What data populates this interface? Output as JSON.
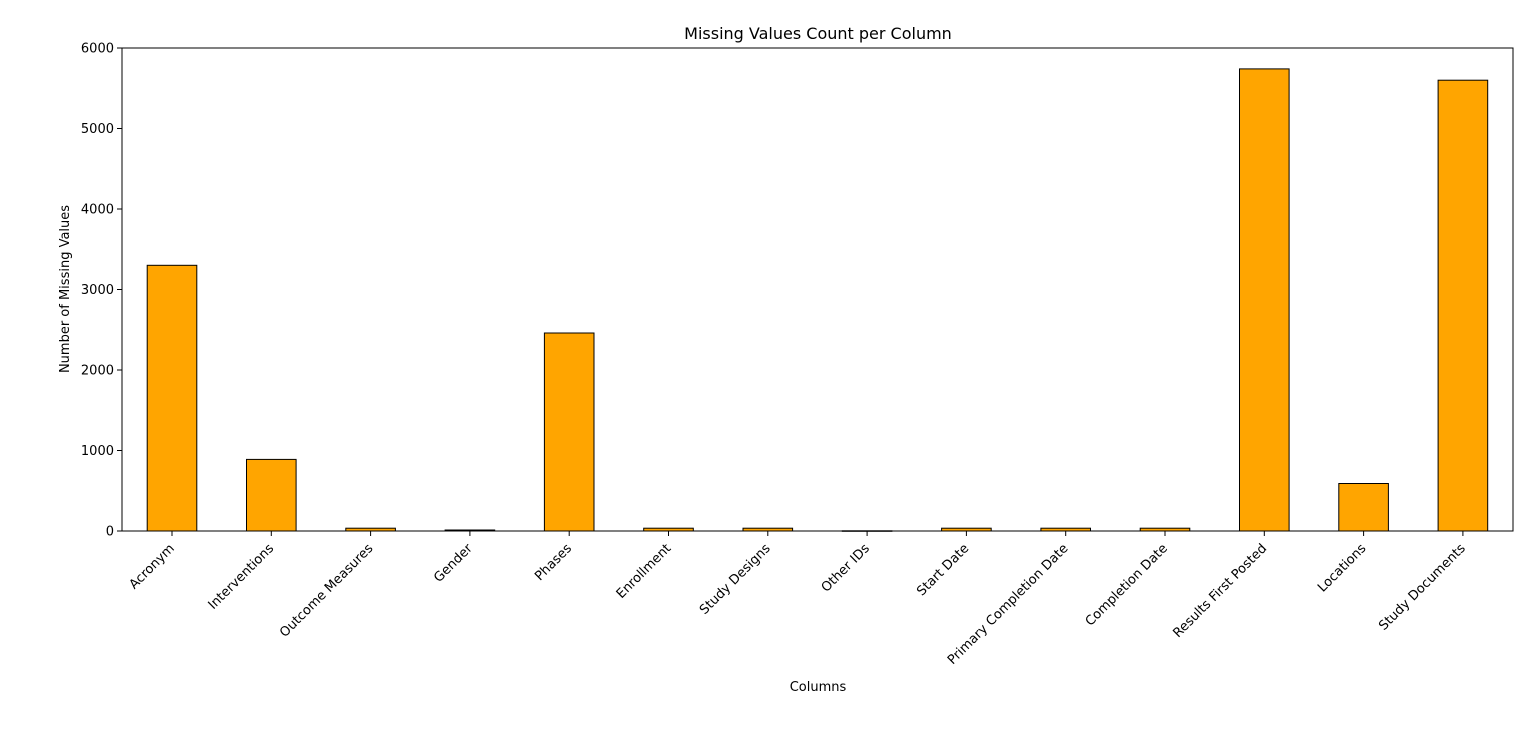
{
  "chart_data": {
    "type": "bar",
    "title": "Missing Values Count per Column",
    "xlabel": "Columns",
    "ylabel": "Number of Missing Values",
    "categories": [
      "Acronym",
      "Interventions",
      "Outcome Measures",
      "Gender",
      "Phases",
      "Enrollment",
      "Study Designs",
      "Other IDs",
      "Start Date",
      "Primary Completion Date",
      "Completion Date",
      "Results First Posted",
      "Locations",
      "Study Documents"
    ],
    "values": [
      3300,
      890,
      35,
      12,
      2460,
      35,
      35,
      2,
      35,
      35,
      35,
      5740,
      590,
      5600
    ],
    "ylim": [
      0,
      6000
    ],
    "yticks": [
      0,
      1000,
      2000,
      3000,
      4000,
      5000,
      6000
    ],
    "grid": false,
    "legend": "none",
    "bar_color": "#ffa500",
    "edge_color": "#000000"
  }
}
